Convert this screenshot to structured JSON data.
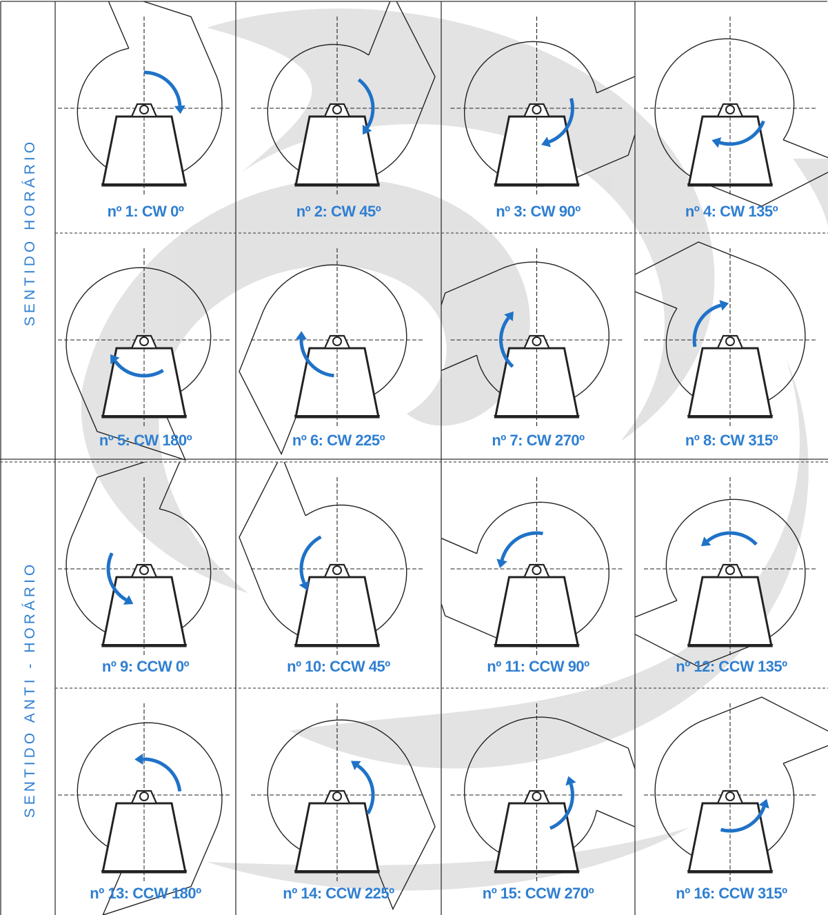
{
  "sidebar": {
    "clockwise_label": "SENTIDO   HORÁRIO",
    "counterclockwise_label": "SENTIDO   ANTI - HORÁRIO"
  },
  "colors": {
    "arrow": "#1f72c7",
    "caption": "#2f7fd1",
    "watermark": "#d6d6d6",
    "line": "#222222"
  },
  "positions": [
    {
      "caption": "nº 1:  CW  0º",
      "direction": "CW",
      "angle": 0
    },
    {
      "caption": "nº 2:  CW  45º",
      "direction": "CW",
      "angle": 45
    },
    {
      "caption": "nº 3:  CW  90º",
      "direction": "CW",
      "angle": 90
    },
    {
      "caption": "nº 4:  CW  135º",
      "direction": "CW",
      "angle": 135
    },
    {
      "caption": "nº 5:  CW  180º",
      "direction": "CW",
      "angle": 180
    },
    {
      "caption": "nº 6:  CW  225º",
      "direction": "CW",
      "angle": 225
    },
    {
      "caption": "nº 7:  CW  270º",
      "direction": "CW",
      "angle": 270
    },
    {
      "caption": "nº 8:  CW  315º",
      "direction": "CW",
      "angle": 315
    },
    {
      "caption": "nº 9:  CCW  0º",
      "direction": "CCW",
      "angle": 0
    },
    {
      "caption": "nº 10:  CCW  45º",
      "direction": "CCW",
      "angle": 45
    },
    {
      "caption": "nº 11:  CCW  90º",
      "direction": "CCW",
      "angle": 90
    },
    {
      "caption": "nº 12:  CCW  135º",
      "direction": "CCW",
      "angle": 135
    },
    {
      "caption": "nº 13: CCW  180º",
      "direction": "CCW",
      "angle": 180
    },
    {
      "caption": "nº 14:  CCW  225º",
      "direction": "CCW",
      "angle": 225
    },
    {
      "caption": "nº 15:  CCW 270º",
      "direction": "CCW",
      "angle": 270
    },
    {
      "caption": "nº 16:  CCW  315º",
      "direction": "CCW",
      "angle": 315
    }
  ]
}
